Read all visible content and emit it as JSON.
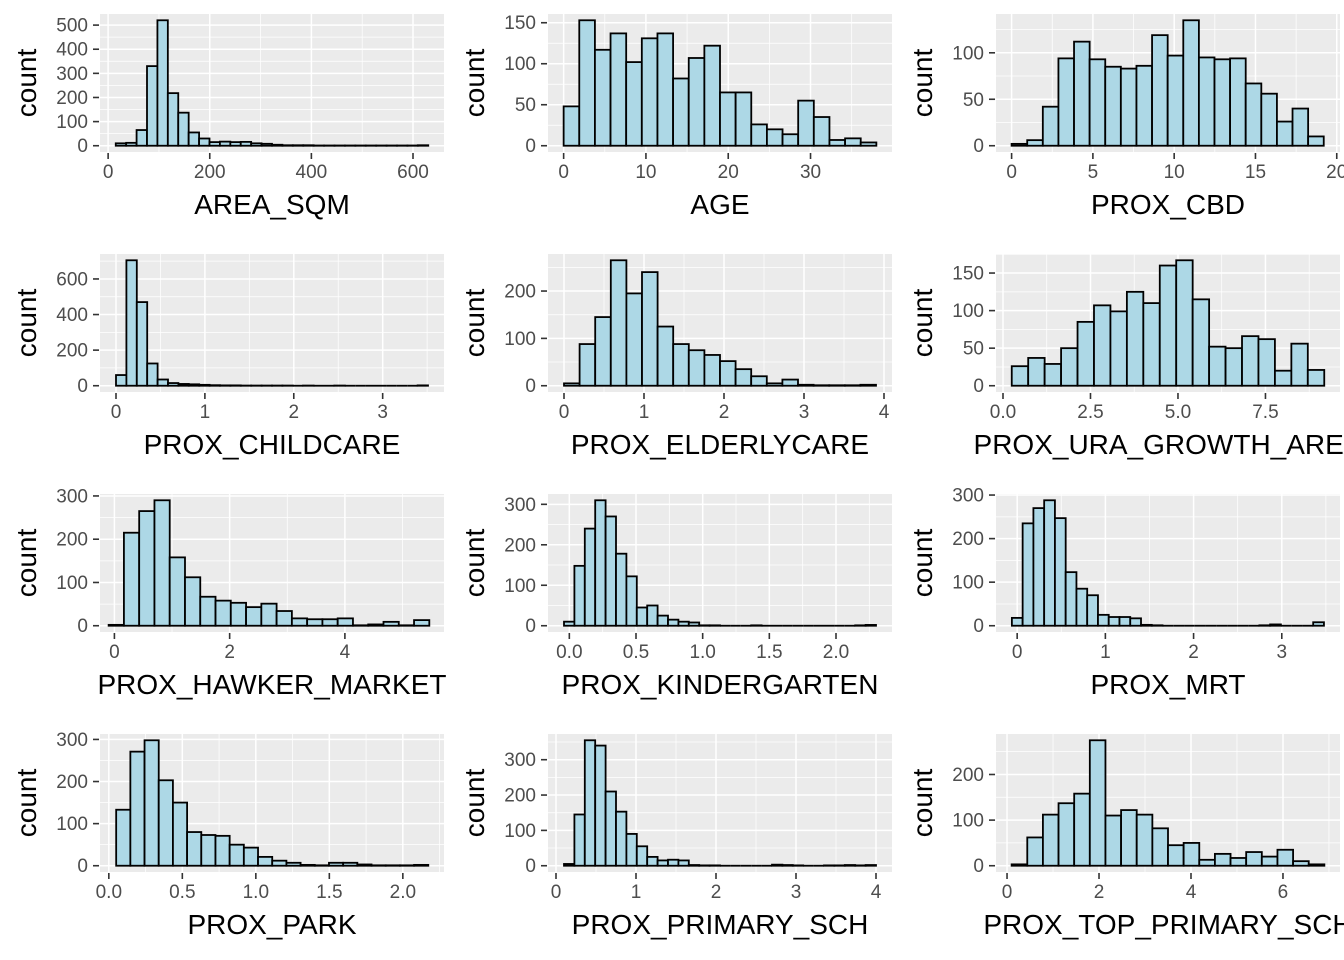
{
  "figure": {
    "ylabel": "count",
    "colors": {
      "background": "#FFFFFF",
      "panel_bg": "#EBEBEB",
      "grid": "#FFFFFF",
      "bar_fill": "#ADD8E6",
      "bar_stroke": "#000000",
      "tick_text": "#4D4D4D",
      "axis_title": "#000000",
      "tick_mark": "#333333"
    }
  },
  "chart_data": [
    {
      "type": "bar",
      "subtype": "histogram",
      "xlabel": "AREA_SQM",
      "ylabel": "count",
      "x0": 15,
      "binwidth": 20.5,
      "counts": [
        10,
        12,
        65,
        330,
        520,
        218,
        137,
        55,
        30,
        15,
        17,
        15,
        16,
        10,
        8,
        4,
        2,
        2,
        2,
        1,
        1,
        1,
        1,
        1,
        1,
        1,
        1,
        1,
        1,
        2
      ],
      "xlim": [
        -16,
        661
      ],
      "xtick_values": [
        0,
        200,
        400,
        600
      ],
      "xtick_labels": [
        "0",
        "200",
        "400",
        "600"
      ],
      "ytick_values": [
        0,
        100,
        200,
        300,
        400,
        500
      ],
      "ytick_labels": [
        "0",
        "100",
        "200",
        "300",
        "400",
        "500"
      ]
    },
    {
      "type": "bar",
      "subtype": "histogram",
      "xlabel": "AGE",
      "ylabel": "count",
      "x0": 0,
      "binwidth": 1.9,
      "counts": [
        48,
        153,
        117,
        137,
        102,
        131,
        137,
        82,
        107,
        122,
        65,
        65,
        26,
        20,
        14,
        55,
        35,
        7,
        9,
        4
      ],
      "xlim": [
        -1.9,
        39.9
      ],
      "xtick_values": [
        0,
        10,
        20,
        30
      ],
      "xtick_labels": [
        "0",
        "10",
        "20",
        "30"
      ],
      "ytick_values": [
        0,
        50,
        100,
        150
      ],
      "ytick_labels": [
        "0",
        "50",
        "100",
        "150"
      ]
    },
    {
      "type": "bar",
      "subtype": "histogram",
      "xlabel": "PROX_CBD",
      "ylabel": "count",
      "x0": 0,
      "binwidth": 0.96,
      "counts": [
        2,
        6,
        42,
        94,
        112,
        93,
        85,
        83,
        86,
        119,
        97,
        135,
        95,
        93,
        94,
        67,
        56,
        26,
        40,
        10
      ],
      "xlim": [
        -0.96,
        20.2
      ],
      "xtick_values": [
        0,
        5,
        10,
        15,
        20
      ],
      "xtick_labels": [
        "0",
        "5",
        "10",
        "15",
        "20"
      ],
      "ytick_values": [
        0,
        50,
        100
      ],
      "ytick_labels": [
        "0",
        "50",
        "100"
      ]
    },
    {
      "type": "bar",
      "subtype": "histogram",
      "xlabel": "PROX_CHILDCARE",
      "ylabel": "count",
      "x0": 0,
      "binwidth": 0.117,
      "counts": [
        60,
        705,
        470,
        125,
        35,
        15,
        10,
        8,
        5,
        3,
        2,
        2,
        1,
        1,
        1,
        1,
        1,
        0,
        1,
        0,
        0,
        1,
        0,
        0,
        0,
        0,
        0,
        0,
        0,
        2
      ],
      "xlim": [
        -0.18,
        3.69
      ],
      "xtick_values": [
        0,
        1,
        2,
        3
      ],
      "xtick_labels": [
        "0",
        "1",
        "2",
        "3"
      ],
      "ytick_values": [
        0,
        200,
        400,
        600
      ],
      "ytick_labels": [
        "0",
        "200",
        "400",
        "600"
      ]
    },
    {
      "type": "bar",
      "subtype": "histogram",
      "xlabel": "PROX_ELDERLYCARE",
      "ylabel": "count",
      "x0": 0,
      "binwidth": 0.195,
      "counts": [
        5,
        88,
        145,
        265,
        195,
        240,
        125,
        88,
        75,
        65,
        52,
        35,
        20,
        5,
        13,
        2,
        1,
        1,
        1,
        2
      ],
      "xlim": [
        -0.2,
        4.1
      ],
      "xtick_values": [
        0,
        1,
        2,
        3,
        4
      ],
      "xtick_labels": [
        "0",
        "1",
        "2",
        "3",
        "4"
      ],
      "ytick_values": [
        0,
        100,
        200
      ],
      "ytick_labels": [
        "0",
        "100",
        "200"
      ]
    },
    {
      "type": "bar",
      "subtype": "histogram",
      "xlabel": "PROX_URA_GROWTH_AREA",
      "ylabel": "count",
      "x0": 0.25,
      "binwidth": 0.47,
      "counts": [
        26,
        37,
        29,
        50,
        85,
        107,
        99,
        125,
        110,
        160,
        167,
        115,
        52,
        50,
        66,
        62,
        20,
        56,
        21
      ],
      "xlim": [
        -0.2,
        9.63
      ],
      "xtick_values": [
        0,
        2.5,
        5,
        7.5
      ],
      "xtick_labels": [
        "0.0",
        "2.5",
        "5.0",
        "7.5"
      ],
      "ytick_values": [
        0,
        50,
        100,
        150
      ],
      "ytick_labels": [
        "0",
        "50",
        "100",
        "150"
      ]
    },
    {
      "type": "bar",
      "subtype": "histogram",
      "xlabel": "PROX_HAWKER_MARKET",
      "ylabel": "count",
      "x0": -0.1,
      "binwidth": 0.265,
      "counts": [
        2,
        215,
        265,
        290,
        158,
        112,
        67,
        58,
        53,
        43,
        51,
        34,
        17,
        15,
        15,
        17,
        1,
        3,
        9,
        1,
        13
      ],
      "xlim": [
        -0.25,
        5.72
      ],
      "xtick_values": [
        0,
        2,
        4
      ],
      "xtick_labels": [
        "0",
        "2",
        "4"
      ],
      "ytick_values": [
        0,
        100,
        200,
        300
      ],
      "ytick_labels": [
        "0",
        "100",
        "200",
        "300"
      ]
    },
    {
      "type": "bar",
      "subtype": "histogram",
      "xlabel": "PROX_KINDERGARTEN",
      "ylabel": "count",
      "x0": -0.04,
      "binwidth": 0.078,
      "counts": [
        10,
        148,
        240,
        310,
        270,
        178,
        122,
        45,
        50,
        25,
        15,
        10,
        8,
        1,
        1,
        0,
        0,
        0,
        1,
        0,
        0,
        0,
        0,
        0,
        0,
        0,
        0,
        0,
        1,
        2
      ],
      "xlim": [
        -0.16,
        2.42
      ],
      "xtick_values": [
        0,
        0.5,
        1,
        1.5,
        2
      ],
      "xtick_labels": [
        "0.0",
        "0.5",
        "1.0",
        "1.5",
        "2.0"
      ],
      "ytick_values": [
        0,
        100,
        200,
        300
      ],
      "ytick_labels": [
        "0",
        "100",
        "200",
        "300"
      ]
    },
    {
      "type": "bar",
      "subtype": "histogram",
      "xlabel": "PROX_MRT",
      "ylabel": "count",
      "x0": -0.06,
      "binwidth": 0.122,
      "counts": [
        18,
        235,
        270,
        288,
        247,
        123,
        85,
        70,
        25,
        20,
        20,
        17,
        2,
        1,
        0,
        0,
        0,
        0,
        0,
        0,
        0,
        0,
        0,
        1,
        3,
        0,
        0,
        0,
        8
      ],
      "xlim": [
        -0.24,
        3.66
      ],
      "xtick_values": [
        0,
        1,
        2,
        3
      ],
      "xtick_labels": [
        "0",
        "1",
        "2",
        "3"
      ],
      "ytick_values": [
        0,
        100,
        200,
        300
      ],
      "ytick_labels": [
        "0",
        "100",
        "200",
        "300"
      ]
    },
    {
      "type": "bar",
      "subtype": "histogram",
      "xlabel": "PROX_PARK",
      "ylabel": "count",
      "x0": 0.05,
      "binwidth": 0.0965,
      "counts": [
        133,
        271,
        298,
        203,
        150,
        80,
        73,
        71,
        50,
        43,
        21,
        12,
        7,
        2,
        1,
        7,
        7,
        3,
        1,
        1,
        1,
        2
      ],
      "xlim": [
        -0.06,
        2.28
      ],
      "xtick_values": [
        0,
        0.5,
        1,
        1.5,
        2
      ],
      "xtick_labels": [
        "0.0",
        "0.5",
        "1.0",
        "1.5",
        "2.0"
      ],
      "ytick_values": [
        0,
        100,
        200,
        300
      ],
      "ytick_labels": [
        "0",
        "100",
        "200",
        "300"
      ]
    },
    {
      "type": "bar",
      "subtype": "histogram",
      "xlabel": "PROX_PRIMARY_SCH",
      "ylabel": "count",
      "x0": 0.1,
      "binwidth": 0.13,
      "counts": [
        5,
        145,
        355,
        340,
        210,
        153,
        90,
        55,
        25,
        15,
        17,
        15,
        2,
        1,
        1,
        0,
        0,
        0,
        0,
        0,
        3,
        2,
        1,
        0,
        0,
        1,
        1,
        2,
        1,
        2
      ],
      "xlim": [
        -0.1,
        4.2
      ],
      "xtick_values": [
        0,
        1,
        2,
        3,
        4
      ],
      "xtick_labels": [
        "0",
        "1",
        "2",
        "3",
        "4"
      ],
      "ytick_values": [
        0,
        100,
        200,
        300
      ],
      "ytick_labels": [
        "0",
        "100",
        "200",
        "300"
      ]
    },
    {
      "type": "bar",
      "subtype": "histogram",
      "xlabel": "PROX_TOP_PRIMARY_SCH",
      "ylabel": "count",
      "x0": 0.1,
      "binwidth": 0.34,
      "counts": [
        3,
        62,
        112,
        137,
        158,
        275,
        110,
        122,
        112,
        82,
        45,
        50,
        13,
        26,
        17,
        30,
        20,
        35,
        10,
        3
      ],
      "xlim": [
        -0.24,
        7.24
      ],
      "xtick_values": [
        0,
        2,
        4,
        6
      ],
      "xtick_labels": [
        "0",
        "2",
        "4",
        "6"
      ],
      "ytick_values": [
        0,
        100,
        200
      ],
      "ytick_labels": [
        "0",
        "100",
        "200"
      ]
    }
  ]
}
